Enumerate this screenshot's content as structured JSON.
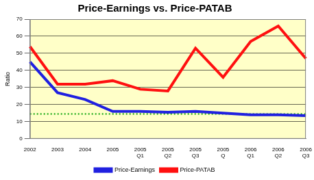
{
  "chart_data": {
    "type": "line",
    "title": "Price-Earnings vs. Price-PATAB",
    "y_label": "Ratio",
    "categories": [
      "2002",
      "2003",
      "2004",
      "2005",
      "2005 Q1",
      "2005 Q2",
      "2005 Q3",
      "2005 Q",
      "2006 Q1",
      "2006 Q2",
      "2006 Q3"
    ],
    "series": [
      {
        "name": "Price-Earnings",
        "color": "#2020e0",
        "line_style": "solid",
        "marker": "none",
        "values": [
          45,
          27,
          23,
          16,
          16,
          15.5,
          16,
          15,
          14,
          14,
          13.5
        ]
      },
      {
        "name": "Price-PATAB",
        "color": "#ff1010",
        "line_style": "solid",
        "marker": "none",
        "values": [
          54,
          32,
          32,
          34,
          29,
          28,
          53,
          36,
          57,
          66,
          47
        ]
      },
      {
        "color": "#00a000",
        "line_style": "dotted",
        "marker": "none",
        "values": [
          14.5,
          14.5,
          14.5,
          14.5,
          14.5,
          14.5,
          14.5,
          14.5,
          14.5,
          14.5,
          14.5
        ]
      }
    ],
    "ylim": [
      0,
      70
    ],
    "yticks": [
      0,
      10,
      20,
      30,
      40,
      50,
      60,
      70
    ],
    "grid": true,
    "legend": "bottom"
  }
}
